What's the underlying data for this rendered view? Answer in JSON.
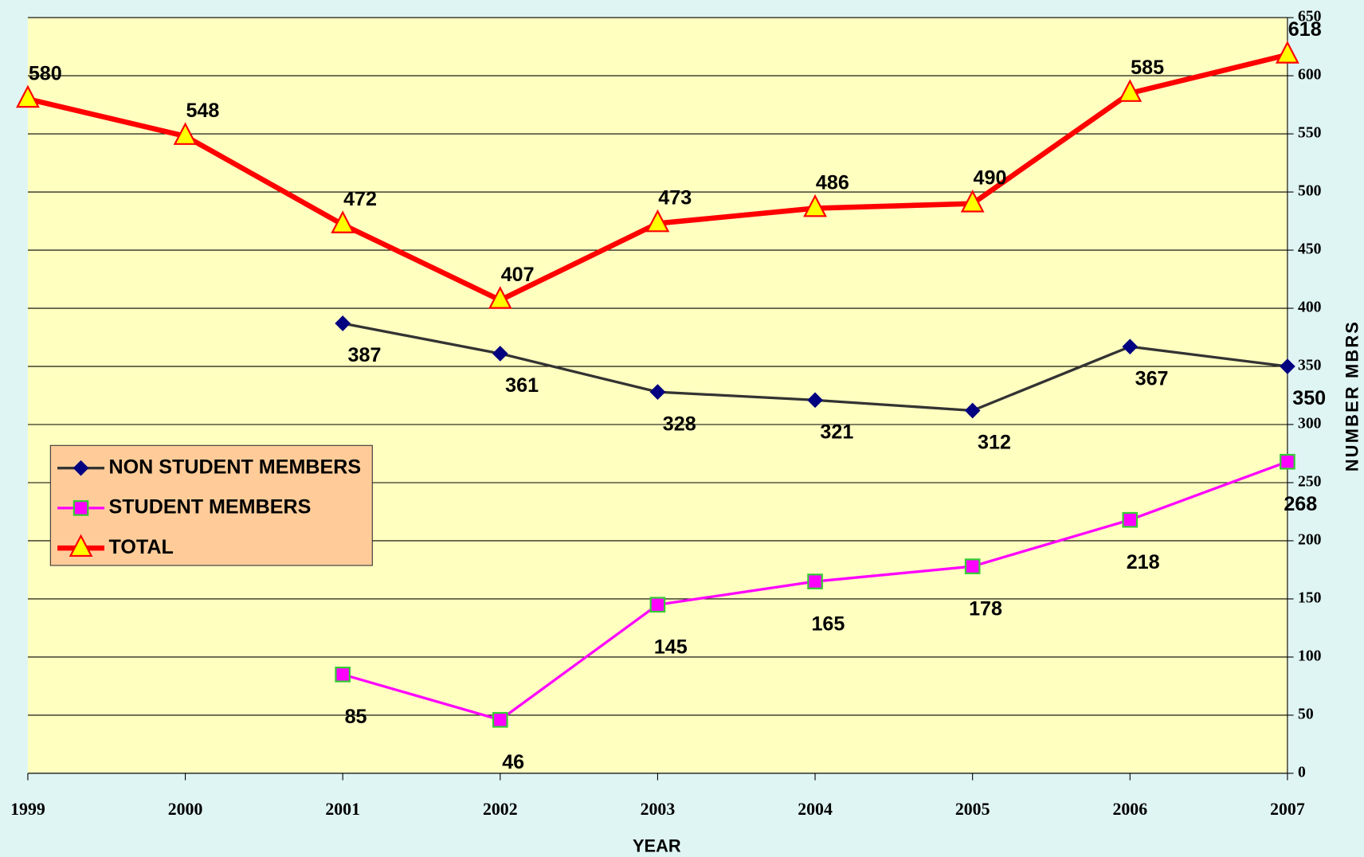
{
  "chart_data": {
    "type": "line",
    "x_label": "YEAR",
    "y_label": "NUMBER MBRS",
    "categories": [
      "1999",
      "2000",
      "2001",
      "2002",
      "2003",
      "2004",
      "2005",
      "2006",
      "2007"
    ],
    "series": [
      {
        "name": "NON STUDENT MEMBERS",
        "color": "#333333",
        "marker": "diamond",
        "marker_color": "#000080",
        "values": [
          null,
          null,
          387,
          361,
          328,
          321,
          312,
          367,
          350
        ]
      },
      {
        "name": "STUDENT MEMBERS",
        "color": "#ff00ff",
        "marker": "square",
        "marker_color": "#ff00ff",
        "values": [
          null,
          null,
          85,
          46,
          145,
          165,
          178,
          218,
          268
        ]
      },
      {
        "name": "TOTAL",
        "color": "#ff0000",
        "marker": "triangle",
        "marker_color": "#ffff00",
        "values": [
          580,
          548,
          472,
          407,
          473,
          486,
          490,
          585,
          618
        ]
      }
    ],
    "ylim": [
      0,
      650
    ],
    "yticks": [
      0,
      50,
      100,
      150,
      200,
      250,
      300,
      350,
      400,
      450,
      500,
      550,
      600,
      650
    ],
    "grid": true,
    "legend": "left"
  }
}
